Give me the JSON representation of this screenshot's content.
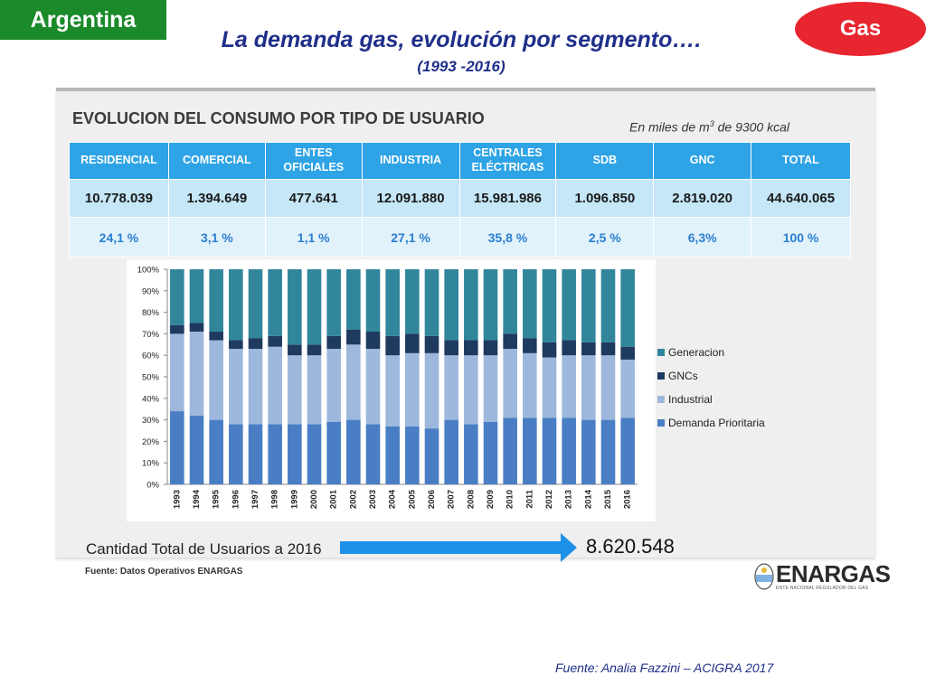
{
  "tags": {
    "country": "Argentina",
    "product": "Gas"
  },
  "title": "La demanda gas, evolución por segmento….",
  "subtitle": "(1993 -2016)",
  "panel": {
    "heading": "EVOLUCION DEL CONSUMO POR TIPO DE USUARIO",
    "unit": "En miles de m3 de 9300 kcal"
  },
  "table": {
    "headers": [
      "RESIDENCIAL",
      "COMERCIAL",
      "ENTES OFICIALES",
      "INDUSTRIA",
      "CENTRALES ELÉCTRICAS",
      "SDB",
      "GNC",
      "TOTAL"
    ],
    "values": [
      "10.778.039",
      "1.394.649",
      "477.641",
      "12.091.880",
      "15.981.986",
      "1.096.850",
      "2.819.020",
      "44.640.065"
    ],
    "percents": [
      "24,1 %",
      "3,1 %",
      "1,1 %",
      "27,1 %",
      "35,8 %",
      "2,5 %",
      "6,3%",
      "100 %"
    ]
  },
  "usuarios": {
    "label": "Cantidad Total de Usuarios a 2016",
    "value": "8.620.548"
  },
  "fuente_panel": "Fuente: Datos Operativos ENARGAS",
  "logo": {
    "name": "ENARGAS",
    "subtitle": "ENTE NACIONAL REGULADOR DEL GAS"
  },
  "fuente_footer": "Fuente: Analia Fazzini – ACIGRA 2017",
  "colors": {
    "demanda": "#4a7ec4",
    "industrial": "#9db8dc",
    "gnc": "#1f3a5f",
    "generacion": "#31869b",
    "header_blue": "#2ea3e6",
    "title_blue": "#1f2f8a",
    "arrow": "#1e90e8"
  },
  "chart_data": {
    "type": "bar",
    "stacked": true,
    "categories": [
      "1993",
      "1994",
      "1995",
      "1996",
      "1997",
      "1998",
      "1999",
      "2000",
      "2001",
      "2002",
      "2003",
      "2004",
      "2005",
      "2006",
      "2007",
      "2008",
      "2009",
      "2010",
      "2011",
      "2012",
      "2013",
      "2014",
      "2015",
      "2016"
    ],
    "series": [
      {
        "name": "Demanda Prioritaria",
        "values": [
          34,
          32,
          30,
          28,
          28,
          28,
          28,
          28,
          29,
          30,
          28,
          27,
          27,
          26,
          30,
          28,
          29,
          31,
          31,
          31,
          31,
          30,
          30,
          31
        ]
      },
      {
        "name": "Industrial",
        "values": [
          36,
          39,
          37,
          35,
          35,
          36,
          32,
          32,
          34,
          35,
          35,
          33,
          34,
          35,
          30,
          32,
          31,
          32,
          30,
          28,
          29,
          30,
          30,
          27
        ]
      },
      {
        "name": "GNCs",
        "values": [
          4,
          4,
          4,
          4,
          5,
          5,
          5,
          5,
          6,
          7,
          8,
          9,
          9,
          8,
          7,
          7,
          7,
          7,
          7,
          7,
          7,
          6,
          6,
          6
        ]
      },
      {
        "name": "Generacion",
        "values": [
          26,
          25,
          29,
          33,
          32,
          31,
          35,
          35,
          31,
          28,
          29,
          31,
          30,
          31,
          33,
          33,
          33,
          30,
          32,
          34,
          33,
          34,
          34,
          36
        ]
      }
    ],
    "ylim": [
      0,
      100
    ],
    "yticks": [
      "0%",
      "10%",
      "20%",
      "30%",
      "40%",
      "50%",
      "60%",
      "70%",
      "80%",
      "90%",
      "100%"
    ],
    "legend_order": [
      "Generacion",
      "GNCs",
      "Industrial",
      "Demanda Prioritaria"
    ],
    "legend": "right",
    "grid": false
  }
}
